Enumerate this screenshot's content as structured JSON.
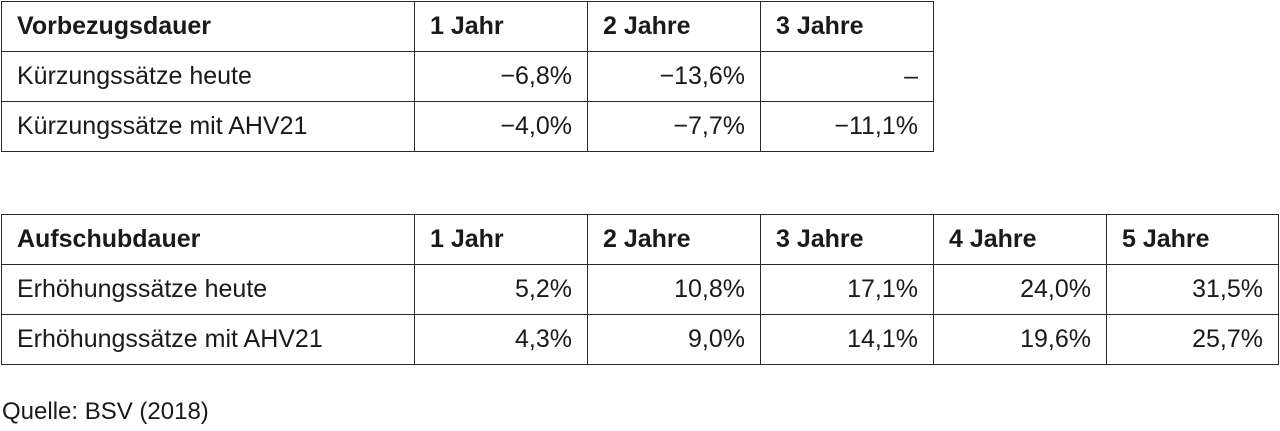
{
  "table_vorbezug": {
    "headers": [
      "Vorbezugsdauer",
      "1 Jahr",
      "2 Jahre",
      "3 Jahre"
    ],
    "rows": [
      [
        "Kürzungssätze heute",
        "−6,8%",
        "−13,6%",
        "–"
      ],
      [
        "Kürzungssätze mit AHV21",
        "−4,0%",
        "−7,7%",
        "−11,1%"
      ]
    ]
  },
  "table_aufschub": {
    "headers": [
      "Aufschubdauer",
      "1 Jahr",
      "2 Jahre",
      "3 Jahre",
      "4 Jahre",
      "5 Jahre"
    ],
    "rows": [
      [
        "Erhöhungssätze heute",
        "5,2%",
        "10,8%",
        "17,1%",
        "24,0%",
        "31,5%"
      ],
      [
        "Erhöhungssätze mit AHV21",
        "4,3%",
        "9,0%",
        "14,1%",
        "19,6%",
        "25,7%"
      ]
    ]
  },
  "source": "Quelle: BSV (2018)"
}
